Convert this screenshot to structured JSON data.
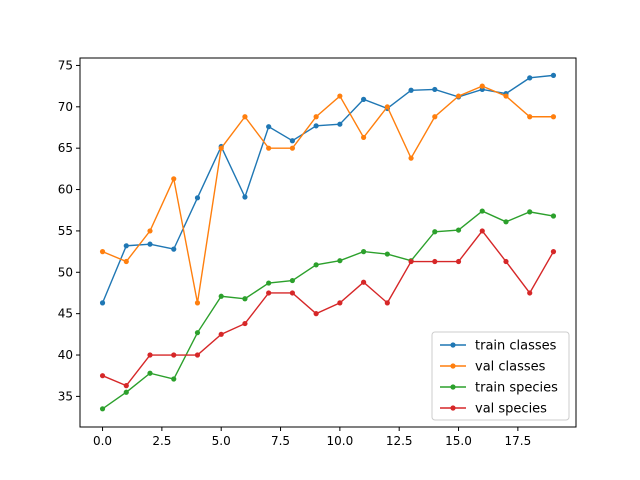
{
  "chart_data": {
    "type": "line",
    "title": "",
    "xlabel": "",
    "ylabel": "",
    "x": [
      0,
      1,
      2,
      3,
      4,
      5,
      6,
      7,
      8,
      9,
      10,
      11,
      12,
      13,
      14,
      15,
      16,
      17,
      18,
      19
    ],
    "xlim": [
      -0.95,
      19.95
    ],
    "ylim": [
      31.3,
      75.9
    ],
    "x_ticks": [
      0,
      2.5,
      5,
      7.5,
      10,
      12.5,
      15,
      17.5
    ],
    "x_tick_labels": [
      "0.0",
      "2.5",
      "5.0",
      "7.5",
      "10.0",
      "12.5",
      "15.0",
      "17.5"
    ],
    "y_ticks": [
      35,
      40,
      45,
      50,
      55,
      60,
      65,
      70,
      75
    ],
    "y_tick_labels": [
      "35",
      "40",
      "45",
      "50",
      "55",
      "60",
      "65",
      "70",
      "75"
    ],
    "grid": false,
    "legend_position": "lower right",
    "series": [
      {
        "name": "train classes",
        "color": "#1f77b4",
        "values": [
          46.3,
          53.2,
          53.4,
          52.8,
          59.0,
          65.2,
          59.1,
          67.6,
          65.9,
          67.7,
          67.9,
          70.9,
          69.8,
          72.0,
          72.1,
          71.2,
          72.1,
          71.6,
          73.5,
          73.8
        ]
      },
      {
        "name": "val classes",
        "color": "#ff7f0e",
        "values": [
          52.5,
          51.3,
          55.0,
          61.3,
          46.3,
          65.0,
          68.8,
          65.0,
          65.0,
          68.8,
          71.3,
          66.3,
          70.0,
          63.8,
          68.8,
          71.3,
          72.5,
          71.3,
          68.8,
          68.8
        ]
      },
      {
        "name": "train species",
        "color": "#2ca02c",
        "values": [
          33.5,
          35.5,
          37.8,
          37.1,
          42.7,
          47.1,
          46.8,
          48.7,
          49.0,
          50.9,
          51.4,
          52.5,
          52.2,
          51.4,
          54.9,
          55.1,
          57.4,
          56.1,
          57.3,
          56.8
        ]
      },
      {
        "name": "val species",
        "color": "#d62728",
        "values": [
          37.5,
          36.3,
          40.0,
          40.0,
          40.0,
          42.5,
          43.8,
          47.5,
          47.5,
          45.0,
          46.3,
          48.8,
          46.3,
          51.3,
          51.3,
          51.3,
          55.0,
          51.3,
          47.5,
          52.5
        ]
      }
    ]
  }
}
